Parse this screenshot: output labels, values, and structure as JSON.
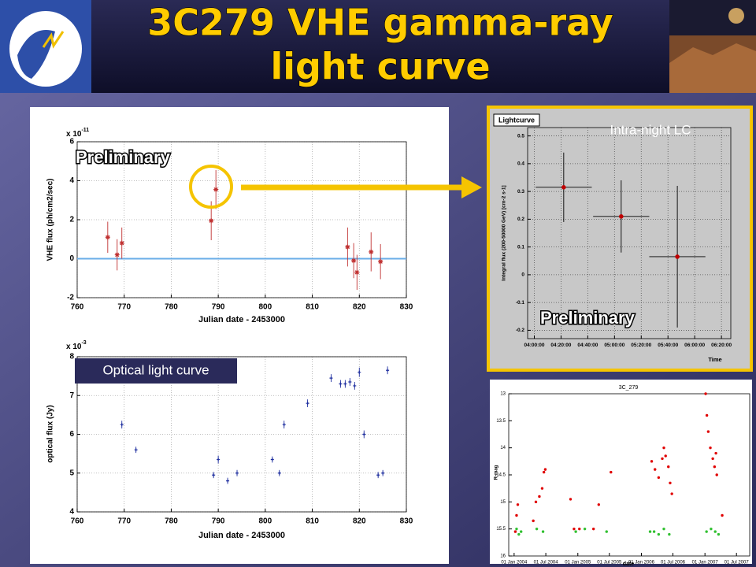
{
  "title": [
    "3C279 VHE gamma-ray",
    "light curve"
  ],
  "chart_data": [
    {
      "type": "errorbar",
      "marker": "star",
      "color": "#c03030",
      "x": [
        766.5,
        768.5,
        769.5,
        788.5,
        789.5,
        817.5,
        818.8,
        819.5,
        822.5,
        824.5
      ],
      "values": [
        1.1,
        0.2,
        0.8,
        1.95,
        3.55,
        0.6,
        -0.1,
        -0.7,
        0.35,
        -0.15
      ],
      "errors": [
        0.8,
        0.8,
        0.8,
        1.0,
        1.0,
        1.0,
        0.9,
        0.9,
        1.0,
        0.9
      ],
      "xlim": [
        760,
        830
      ],
      "xticks": [
        760,
        770,
        780,
        790,
        800,
        810,
        820,
        830
      ],
      "ylim": [
        -2,
        6
      ],
      "yticks": [
        -2,
        0,
        2,
        4,
        6
      ],
      "xlabel": "Julian date - 2453000",
      "ylabel": "VHE flux (ph/cm2/sec)",
      "multiplier": "x 10",
      "multiplier_exponent": "-11",
      "reference_line": 0,
      "annotation": "Preliminary",
      "grid": true
    },
    {
      "type": "errorbar",
      "marker": "plus",
      "color": "#2030a0",
      "x": [
        769.5,
        772.5,
        789,
        790,
        792,
        794,
        801.5,
        803,
        804,
        809,
        814,
        816,
        817,
        818,
        819,
        820,
        821,
        824,
        825,
        826
      ],
      "values": [
        6.25,
        5.6,
        4.95,
        5.35,
        4.8,
        5.0,
        5.35,
        5.0,
        6.25,
        6.8,
        7.45,
        7.3,
        7.3,
        7.35,
        7.25,
        7.6,
        6.0,
        4.95,
        5.0,
        7.65
      ],
      "errors": [
        0.1,
        0.08,
        0.08,
        0.1,
        0.08,
        0.08,
        0.08,
        0.08,
        0.1,
        0.1,
        0.1,
        0.1,
        0.1,
        0.1,
        0.1,
        0.12,
        0.1,
        0.08,
        0.08,
        0.1
      ],
      "xlim": [
        760,
        830
      ],
      "xticks": [
        760,
        770,
        780,
        790,
        800,
        810,
        820,
        830
      ],
      "ylim": [
        4,
        8
      ],
      "yticks": [
        4,
        5,
        6,
        7,
        8
      ],
      "xlabel": "Julian date - 2453000",
      "ylabel": "optical flux (Jy)",
      "multiplier": "x 10",
      "multiplier_exponent": "-3",
      "annotation": "Optical light curve",
      "grid": true
    },
    {
      "type": "errorbar",
      "marker": "circle",
      "color": "#c00000",
      "title": "Lightcurve",
      "label": "Intra-night LC",
      "x": [
        262,
        305,
        347
      ],
      "x_errors": [
        21,
        21,
        21
      ],
      "values": [
        0.315,
        0.21,
        0.065
      ],
      "errors": [
        0.125,
        0.13,
        0.255
      ],
      "xlim": [
        235,
        387
      ],
      "xticks": [
        {
          "value": 240,
          "label": "04:00:00"
        },
        {
          "value": 260,
          "label": "04:20:00"
        },
        {
          "value": 280,
          "label": "04:40:00"
        },
        {
          "value": 300,
          "label": "05:00:00"
        },
        {
          "value": 320,
          "label": "05:20:00"
        },
        {
          "value": 340,
          "label": "05:40:00"
        },
        {
          "value": 360,
          "label": "06:00:00"
        },
        {
          "value": 380,
          "label": "06:20:00"
        }
      ],
      "ylim": [
        -0.23,
        0.53
      ],
      "yticks": [
        -0.2,
        -0.1,
        0,
        0.1,
        0.2,
        0.3,
        0.4,
        0.5
      ],
      "xlabel": "Time",
      "ylabel": "Integral flux (200-50000 GeV) [cm-2 s-1]",
      "annotation": "Preliminary",
      "grid": true
    },
    {
      "type": "scatter",
      "title": "3C_279",
      "xlabel": "date",
      "ylabel": "R-mag",
      "xlim": [
        "2003-12-01",
        "2007-09-15"
      ],
      "xticks": [
        {
          "value": "2004-01-01",
          "label": "01 Jan 2004"
        },
        {
          "value": "2004-07-01",
          "label": "01 Jul 2004"
        },
        {
          "value": "2005-01-01",
          "label": "01 Jan 2005"
        },
        {
          "value": "2005-07-01",
          "label": "01 Jul 2005"
        },
        {
          "value": "2006-01-01",
          "label": "01 Jan 2006"
        },
        {
          "value": "2006-07-01",
          "label": "01 Jul 2006"
        },
        {
          "value": "2007-01-01",
          "label": "01 Jan 2007"
        },
        {
          "value": "2007-07-01",
          "label": "01 Jul 2007"
        }
      ],
      "ylim": [
        13,
        16
      ],
      "y_reversed": true,
      "yticks": [
        13,
        13.5,
        14,
        14.5,
        15,
        15.5,
        16
      ],
      "grid": false,
      "series": [
        {
          "color": "#e00000",
          "x": [
            "2004-01-08",
            "2004-01-15",
            "2004-01-22",
            "2004-04-20",
            "2004-05-05",
            "2004-05-25",
            "2004-06-10",
            "2004-06-20",
            "2004-06-28",
            "2004-11-20",
            "2004-12-10",
            "2005-01-10",
            "2005-04-01",
            "2005-05-01",
            "2005-07-10",
            "2006-03-01",
            "2006-03-20",
            "2006-04-10",
            "2006-05-01",
            "2006-05-10",
            "2006-05-20",
            "2006-06-05",
            "2006-06-15",
            "2006-06-25",
            "2007-01-05",
            "2007-01-12",
            "2007-01-20",
            "2007-02-01",
            "2007-02-15",
            "2007-02-25",
            "2007-03-05",
            "2007-03-10",
            "2007-04-10"
          ],
          "values": [
            15.55,
            15.25,
            15.05,
            15.35,
            15.0,
            14.9,
            14.75,
            14.45,
            14.4,
            14.95,
            15.5,
            15.5,
            15.5,
            15.05,
            14.45,
            14.25,
            14.4,
            14.55,
            14.2,
            14.0,
            14.15,
            14.35,
            14.65,
            14.85,
            13.0,
            13.4,
            13.7,
            14.0,
            14.2,
            14.35,
            14.1,
            14.5,
            15.25
          ]
        },
        {
          "color": "#30c030",
          "x": [
            "2004-01-15",
            "2004-01-28",
            "2004-02-10",
            "2004-05-10",
            "2004-06-15",
            "2004-12-20",
            "2005-02-10",
            "2005-06-15",
            "2006-02-20",
            "2006-03-15",
            "2006-04-10",
            "2006-05-10",
            "2006-06-10",
            "2007-01-10",
            "2007-02-05",
            "2007-03-01",
            "2007-03-20"
          ],
          "values": [
            15.5,
            15.6,
            15.55,
            15.5,
            15.55,
            15.55,
            15.5,
            15.55,
            15.55,
            15.55,
            15.6,
            15.5,
            15.6,
            15.55,
            15.5,
            15.55,
            15.6
          ]
        }
      ]
    }
  ]
}
